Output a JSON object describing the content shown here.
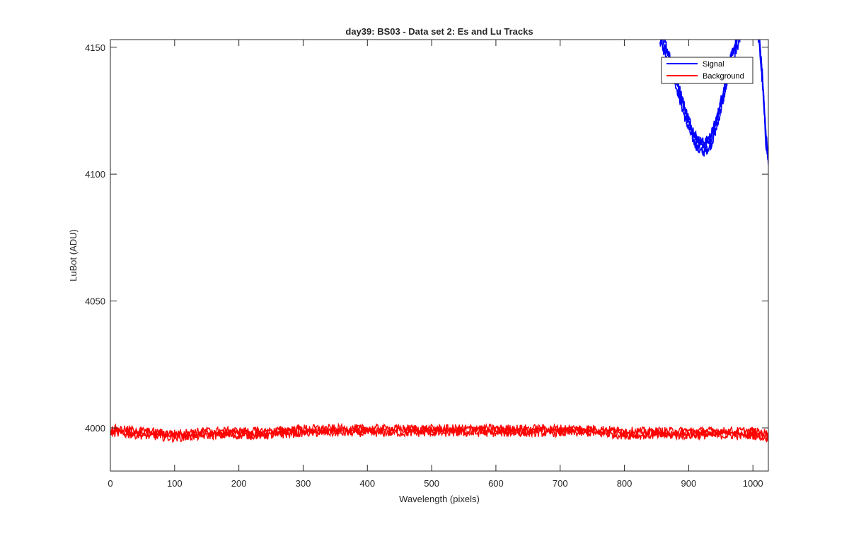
{
  "figure": {
    "title": "day39: BS03 - Data set 2: Es and Lu Tracks"
  },
  "chart_data": {
    "type": "line",
    "title": "day39: BS03 - Data set 2: Es and Lu Tracks",
    "xlabel": "Wavelength (pixels)",
    "ylabel": "LuBot (ADU)",
    "xlim": [
      0,
      1024
    ],
    "ylim": [
      3983,
      4153
    ],
    "xticks": [
      0,
      100,
      200,
      300,
      400,
      500,
      600,
      700,
      800,
      900,
      1000
    ],
    "yticks": [
      4000,
      4050,
      4100,
      4150
    ],
    "grid": false,
    "legend": {
      "placement": "top-right",
      "entries": [
        "Signal",
        "Background"
      ]
    },
    "series": [
      {
        "name": "Signal",
        "color": "#0000ff",
        "x": [
          855,
          865,
          875,
          885,
          895,
          905,
          915,
          925,
          935,
          945,
          955,
          965,
          975,
          985,
          995,
          1005,
          1010,
          1015,
          1020,
          1024
        ],
        "values": [
          4155,
          4149,
          4142,
          4133,
          4124,
          4117,
          4112,
          4111,
          4114,
          4122,
          4133,
          4144,
          4152,
          4160,
          4170,
          4162,
          4153,
          4137,
          4115,
          4107
        ]
      },
      {
        "name": "Background",
        "color": "#ff0000",
        "x": [
          0,
          50,
          100,
          150,
          200,
          250,
          300,
          350,
          400,
          450,
          500,
          550,
          600,
          650,
          700,
          750,
          800,
          850,
          900,
          950,
          1000,
          1024
        ],
        "values": [
          3999,
          3998,
          3997,
          3998,
          3998,
          3998,
          3999,
          3999,
          3999,
          3999,
          3999,
          3999,
          3999,
          3999,
          3999,
          3999,
          3998,
          3998,
          3998,
          3998,
          3998,
          3997
        ]
      }
    ]
  }
}
